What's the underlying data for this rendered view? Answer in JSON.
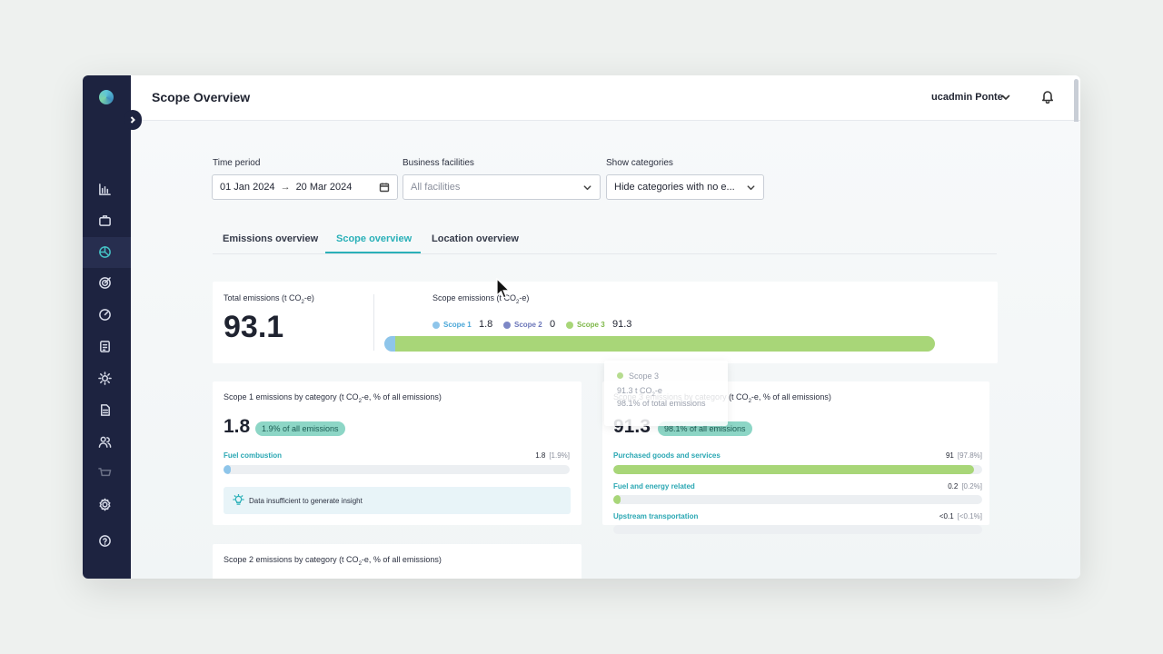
{
  "colors": {
    "sidebar": "#1d2340",
    "accent": "#2ab0b8",
    "scope1": "#8ec5ea",
    "scope2": "#7d88c6",
    "scope3": "#a8d678",
    "badge": "#8dd6c6"
  },
  "sidebar": {
    "logo": "app-logo",
    "items": [
      {
        "icon": "bar-chart-icon"
      },
      {
        "icon": "briefcase-icon"
      },
      {
        "icon": "pie-chart-icon",
        "active": true
      },
      {
        "icon": "target-icon"
      },
      {
        "icon": "gauge-icon"
      },
      {
        "icon": "checklist-icon"
      },
      {
        "icon": "sun-icon"
      },
      {
        "icon": "document-icon"
      },
      {
        "icon": "users-icon"
      },
      {
        "icon": "cart-icon"
      },
      {
        "icon": "settings-icon"
      },
      {
        "icon": "help-icon"
      }
    ]
  },
  "header": {
    "title": "Scope Overview",
    "user": "ucadmin Ponte"
  },
  "filters": {
    "time_period": {
      "label": "Time period",
      "start": "01 Jan 2024",
      "arrow": "→",
      "end": "20 Mar 2024"
    },
    "facilities": {
      "label": "Business facilities",
      "placeholder": "All facilities"
    },
    "categories": {
      "label": "Show categories",
      "value": "Hide categories with no e..."
    }
  },
  "tabs": [
    {
      "label": "Emissions overview"
    },
    {
      "label": "Scope overview",
      "active": true
    },
    {
      "label": "Location overview"
    }
  ],
  "summary": {
    "total_label_pre": "Total emissions (t CO",
    "total_label_sub": "2",
    "total_label_post": "-e)",
    "total_value": "93.1",
    "scope_label_pre": "Scope emissions (t CO",
    "scope_label_sub": "2",
    "scope_label_post": "-e)",
    "scopes": [
      {
        "name": "Scope 1",
        "value": "1.8",
        "share": 1.9
      },
      {
        "name": "Scope 2",
        "value": "0",
        "share": 0
      },
      {
        "name": "Scope 3",
        "value": "91.3",
        "share": 98.1
      }
    ]
  },
  "tooltip": {
    "title": "Scope 3",
    "line1_pre": "91.3 t CO",
    "line1_sub": "2",
    "line1_post": "-e",
    "line2": "98.1% of total emissions"
  },
  "scope1_card": {
    "title_pre": "Scope 1 emissions by category (t CO",
    "title_sub": "2",
    "title_post": "-e, % of all emissions)",
    "value": "1.8",
    "badge": "1.9% of all emissions",
    "categories": [
      {
        "label": "Fuel combustion",
        "value": "1.8",
        "pct": "[1.9%]",
        "fill": 1.9
      }
    ],
    "insight": "Data insufficient to generate insight"
  },
  "scope3_card": {
    "title_pre": "Scope 3 emissions by category (t CO",
    "title_sub": "2",
    "title_post": "-e, % of all emissions)",
    "value": "91.3",
    "badge": "98.1% of all emissions",
    "categories": [
      {
        "label": "Purchased goods and services",
        "value": "91",
        "pct": "[97.8%]",
        "fill": 97.8
      },
      {
        "label": "Fuel and energy related",
        "value": "0.2",
        "pct": "[0.2%]",
        "fill": 0.2
      },
      {
        "label": "Upstream transportation",
        "value": "<0.1",
        "pct": "[<0.1%]",
        "fill": 0
      }
    ]
  },
  "scope2_card": {
    "title_pre": "Scope 2 emissions by category (t CO",
    "title_sub": "2",
    "title_post": "-e, % of all emissions)"
  }
}
